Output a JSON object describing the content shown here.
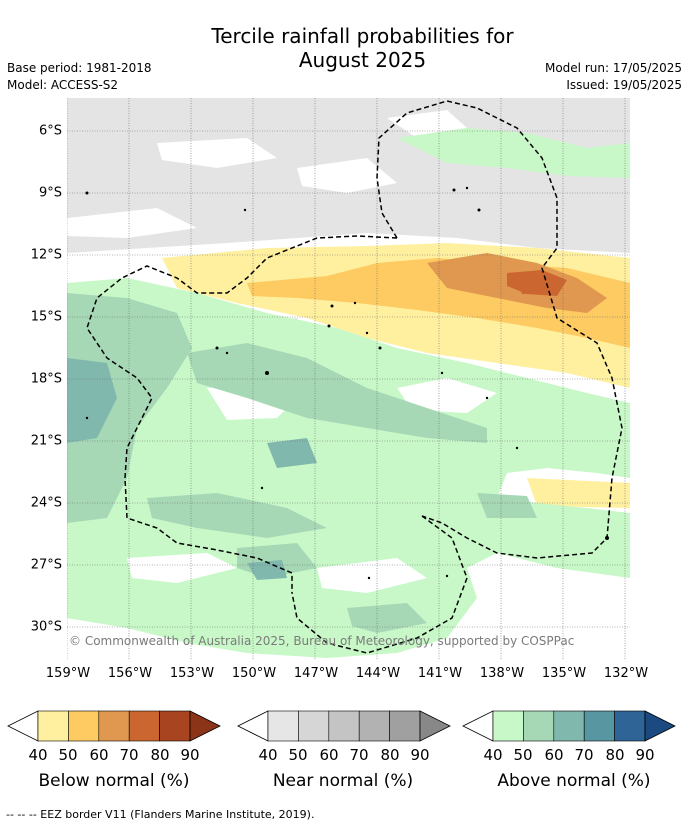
{
  "title_line1": "Tercile rainfall probabilities for",
  "title_line2": "August 2025",
  "meta_left": [
    "Base period: 1981-2018",
    "Model: ACCESS-S2"
  ],
  "meta_right": [
    "Model run: 17/05/2025",
    "Issued: 19/05/2025"
  ],
  "copyright": "© Commonwealth of Australia 2025, Bureau of Meteorology, supported by COSPPac",
  "lat_labels": [
    "6°S",
    "9°S",
    "12°S",
    "15°S",
    "18°S",
    "21°S",
    "24°S",
    "27°S",
    "30°S"
  ],
  "lon_labels": [
    "159°W",
    "156°W",
    "153°W",
    "150°W",
    "147°W",
    "144°W",
    "141°W",
    "138°W",
    "135°W",
    "132°W"
  ],
  "colorbars": [
    {
      "label": "Below normal (%)",
      "ticks": [
        "40",
        "50",
        "60",
        "70",
        "80",
        "90"
      ],
      "colors": [
        "#fff0a0",
        "#fdcb62",
        "#e09850",
        "#cc6630",
        "#a84420",
        "#8c3418"
      ]
    },
    {
      "label": "Near normal (%)",
      "ticks": [
        "40",
        "50",
        "60",
        "70",
        "80",
        "90"
      ],
      "colors": [
        "#e6e6e6",
        "#d6d6d6",
        "#c4c4c4",
        "#b2b2b2",
        "#a0a0a0",
        "#888888"
      ]
    },
    {
      "label": "Above normal (%)",
      "ticks": [
        "40",
        "50",
        "60",
        "70",
        "80",
        "90"
      ],
      "colors": [
        "#c8f8c8",
        "#a6d8b6",
        "#80b8ae",
        "#5896a2",
        "#2e6496",
        "#1a4a80"
      ]
    }
  ],
  "footnote": "--  --  -- EEZ border V11 (Flanders Marine Institute, 2019)."
}
